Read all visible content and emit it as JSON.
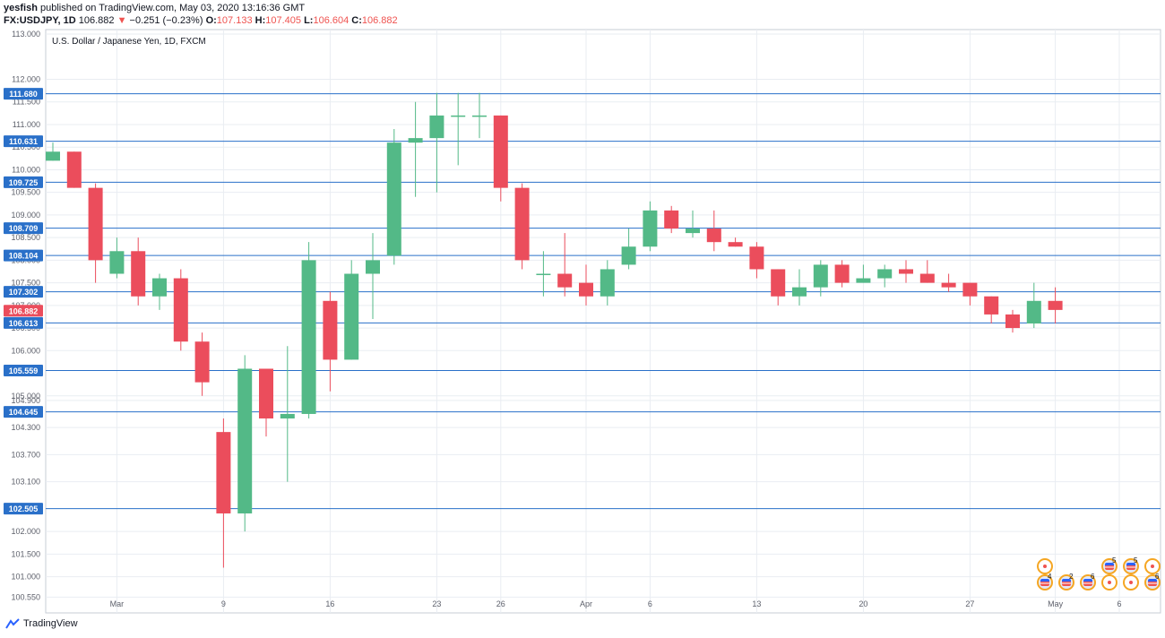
{
  "header": {
    "publisher": "yesfish",
    "published_text": " published on TradingView.com, May 03, 2020 13:16:36 GMT",
    "symbol": "FX:USDJPY, 1D",
    "last": "106.882",
    "arrow": "▼",
    "change": "−0.251 (−0.23%)",
    "o_label": "O:",
    "o_value": "107.133",
    "h_label": "H:",
    "h_value": "107.405",
    "l_label": "L:",
    "l_value": "106.604",
    "c_label": "C:",
    "c_value": "106.882"
  },
  "footer": {
    "brand": "TradingView"
  },
  "events": {
    "row1": [
      {
        "type": "circle",
        "count": ""
      },
      {
        "type": "flag",
        "count": "5"
      },
      {
        "type": "flag",
        "count": "5"
      },
      {
        "type": "circle",
        "count": ""
      }
    ],
    "row2": [
      {
        "type": "flag",
        "count": "4"
      },
      {
        "type": "flag",
        "count": "2"
      },
      {
        "type": "flag",
        "count": "6"
      },
      {
        "type": "circle",
        "count": ""
      },
      {
        "type": "circle",
        "count": ""
      },
      {
        "type": "flag",
        "count": "6"
      }
    ]
  },
  "chart_data": {
    "type": "candlestick",
    "title": "U.S. Dollar / Japanese Yen, 1D, FXCM",
    "colors": {
      "up": "#53b987",
      "down": "#eb4d5c",
      "level": "#2a70c9",
      "grid": "#e9edf2",
      "last_price": "#eb4d5c"
    },
    "ylim": [
      100.2,
      113.1
    ],
    "y_ticks": [
      113.0,
      112.0,
      111.5,
      111.0,
      110.5,
      110.0,
      109.5,
      109.0,
      108.5,
      108.0,
      107.5,
      107.0,
      106.5,
      106.0,
      105.0,
      104.9,
      104.3,
      103.7,
      103.1,
      102.0,
      101.5,
      101.0,
      100.55
    ],
    "x_ticks": [
      {
        "label": "Mar",
        "index": 3
      },
      {
        "label": "9",
        "index": 8
      },
      {
        "label": "16",
        "index": 13
      },
      {
        "label": "23",
        "index": 18
      },
      {
        "label": "26",
        "index": 21
      },
      {
        "label": "Apr",
        "index": 25
      },
      {
        "label": "6",
        "index": 28
      },
      {
        "label": "13",
        "index": 33
      },
      {
        "label": "20",
        "index": 38
      },
      {
        "label": "27",
        "index": 43
      },
      {
        "label": "May",
        "index": 47
      },
      {
        "label": "6",
        "index": 50
      }
    ],
    "levels": [
      111.68,
      110.631,
      109.725,
      108.709,
      108.104,
      107.302,
      106.613,
      105.559,
      104.645,
      102.505
    ],
    "last_price": 106.882,
    "candles": [
      {
        "o": 110.2,
        "h": 110.6,
        "l": 110.2,
        "c": 110.4
      },
      {
        "o": 110.4,
        "h": 110.4,
        "l": 109.6,
        "c": 109.6
      },
      {
        "o": 109.6,
        "h": 109.7,
        "l": 107.5,
        "c": 108.0
      },
      {
        "o": 107.7,
        "h": 108.5,
        "l": 107.6,
        "c": 108.2
      },
      {
        "o": 108.2,
        "h": 108.5,
        "l": 107.0,
        "c": 107.2
      },
      {
        "o": 107.2,
        "h": 107.7,
        "l": 106.9,
        "c": 107.6
      },
      {
        "o": 107.6,
        "h": 107.8,
        "l": 106.0,
        "c": 106.2
      },
      {
        "o": 106.2,
        "h": 106.4,
        "l": 105.0,
        "c": 105.3
      },
      {
        "o": 104.2,
        "h": 104.5,
        "l": 101.2,
        "c": 102.4
      },
      {
        "o": 102.4,
        "h": 105.9,
        "l": 102.0,
        "c": 105.6
      },
      {
        "o": 105.6,
        "h": 105.6,
        "l": 104.1,
        "c": 104.5
      },
      {
        "o": 104.5,
        "h": 106.1,
        "l": 103.1,
        "c": 104.6
      },
      {
        "o": 104.6,
        "h": 108.4,
        "l": 104.5,
        "c": 108.0
      },
      {
        "o": 107.1,
        "h": 107.3,
        "l": 105.1,
        "c": 105.8
      },
      {
        "o": 105.8,
        "h": 108.0,
        "l": 105.8,
        "c": 107.7
      },
      {
        "o": 107.7,
        "h": 108.6,
        "l": 106.7,
        "c": 108.0
      },
      {
        "o": 108.1,
        "h": 110.9,
        "l": 107.9,
        "c": 110.6
      },
      {
        "o": 110.6,
        "h": 111.5,
        "l": 109.4,
        "c": 110.7
      },
      {
        "o": 110.7,
        "h": 111.7,
        "l": 109.5,
        "c": 111.2
      },
      {
        "o": 111.2,
        "h": 111.7,
        "l": 110.1,
        "c": 111.2
      },
      {
        "o": 111.2,
        "h": 111.7,
        "l": 110.7,
        "c": 111.2
      },
      {
        "o": 111.2,
        "h": 111.2,
        "l": 109.3,
        "c": 109.6
      },
      {
        "o": 109.6,
        "h": 109.7,
        "l": 107.8,
        "c": 108.0
      },
      {
        "o": 107.7,
        "h": 108.2,
        "l": 107.2,
        "c": 107.7
      },
      {
        "o": 107.7,
        "h": 108.6,
        "l": 107.2,
        "c": 107.4
      },
      {
        "o": 107.5,
        "h": 107.9,
        "l": 107.0,
        "c": 107.2
      },
      {
        "o": 107.2,
        "h": 108.0,
        "l": 107.0,
        "c": 107.8
      },
      {
        "o": 107.9,
        "h": 108.7,
        "l": 107.8,
        "c": 108.3
      },
      {
        "o": 108.3,
        "h": 109.3,
        "l": 108.2,
        "c": 109.1
      },
      {
        "o": 109.1,
        "h": 109.2,
        "l": 108.6,
        "c": 108.7
      },
      {
        "o": 108.6,
        "h": 109.1,
        "l": 108.5,
        "c": 108.7
      },
      {
        "o": 108.7,
        "h": 109.1,
        "l": 108.2,
        "c": 108.4
      },
      {
        "o": 108.4,
        "h": 108.5,
        "l": 108.3,
        "c": 108.3
      },
      {
        "o": 108.3,
        "h": 108.4,
        "l": 107.6,
        "c": 107.8
      },
      {
        "o": 107.8,
        "h": 107.8,
        "l": 107.0,
        "c": 107.2
      },
      {
        "o": 107.2,
        "h": 107.8,
        "l": 107.0,
        "c": 107.4
      },
      {
        "o": 107.4,
        "h": 108.0,
        "l": 107.2,
        "c": 107.9
      },
      {
        "o": 107.9,
        "h": 108.0,
        "l": 107.4,
        "c": 107.5
      },
      {
        "o": 107.5,
        "h": 107.9,
        "l": 107.5,
        "c": 107.6
      },
      {
        "o": 107.6,
        "h": 107.9,
        "l": 107.4,
        "c": 107.8
      },
      {
        "o": 107.8,
        "h": 108.0,
        "l": 107.5,
        "c": 107.7
      },
      {
        "o": 107.7,
        "h": 108.0,
        "l": 107.5,
        "c": 107.5
      },
      {
        "o": 107.5,
        "h": 107.7,
        "l": 107.3,
        "c": 107.4
      },
      {
        "o": 107.5,
        "h": 107.5,
        "l": 107.0,
        "c": 107.2
      },
      {
        "o": 107.2,
        "h": 107.2,
        "l": 106.6,
        "c": 106.8
      },
      {
        "o": 106.8,
        "h": 106.9,
        "l": 106.4,
        "c": 106.5
      },
      {
        "o": 106.6,
        "h": 107.5,
        "l": 106.5,
        "c": 107.1
      },
      {
        "o": 107.1,
        "h": 107.4,
        "l": 106.6,
        "c": 106.9
      }
    ]
  }
}
